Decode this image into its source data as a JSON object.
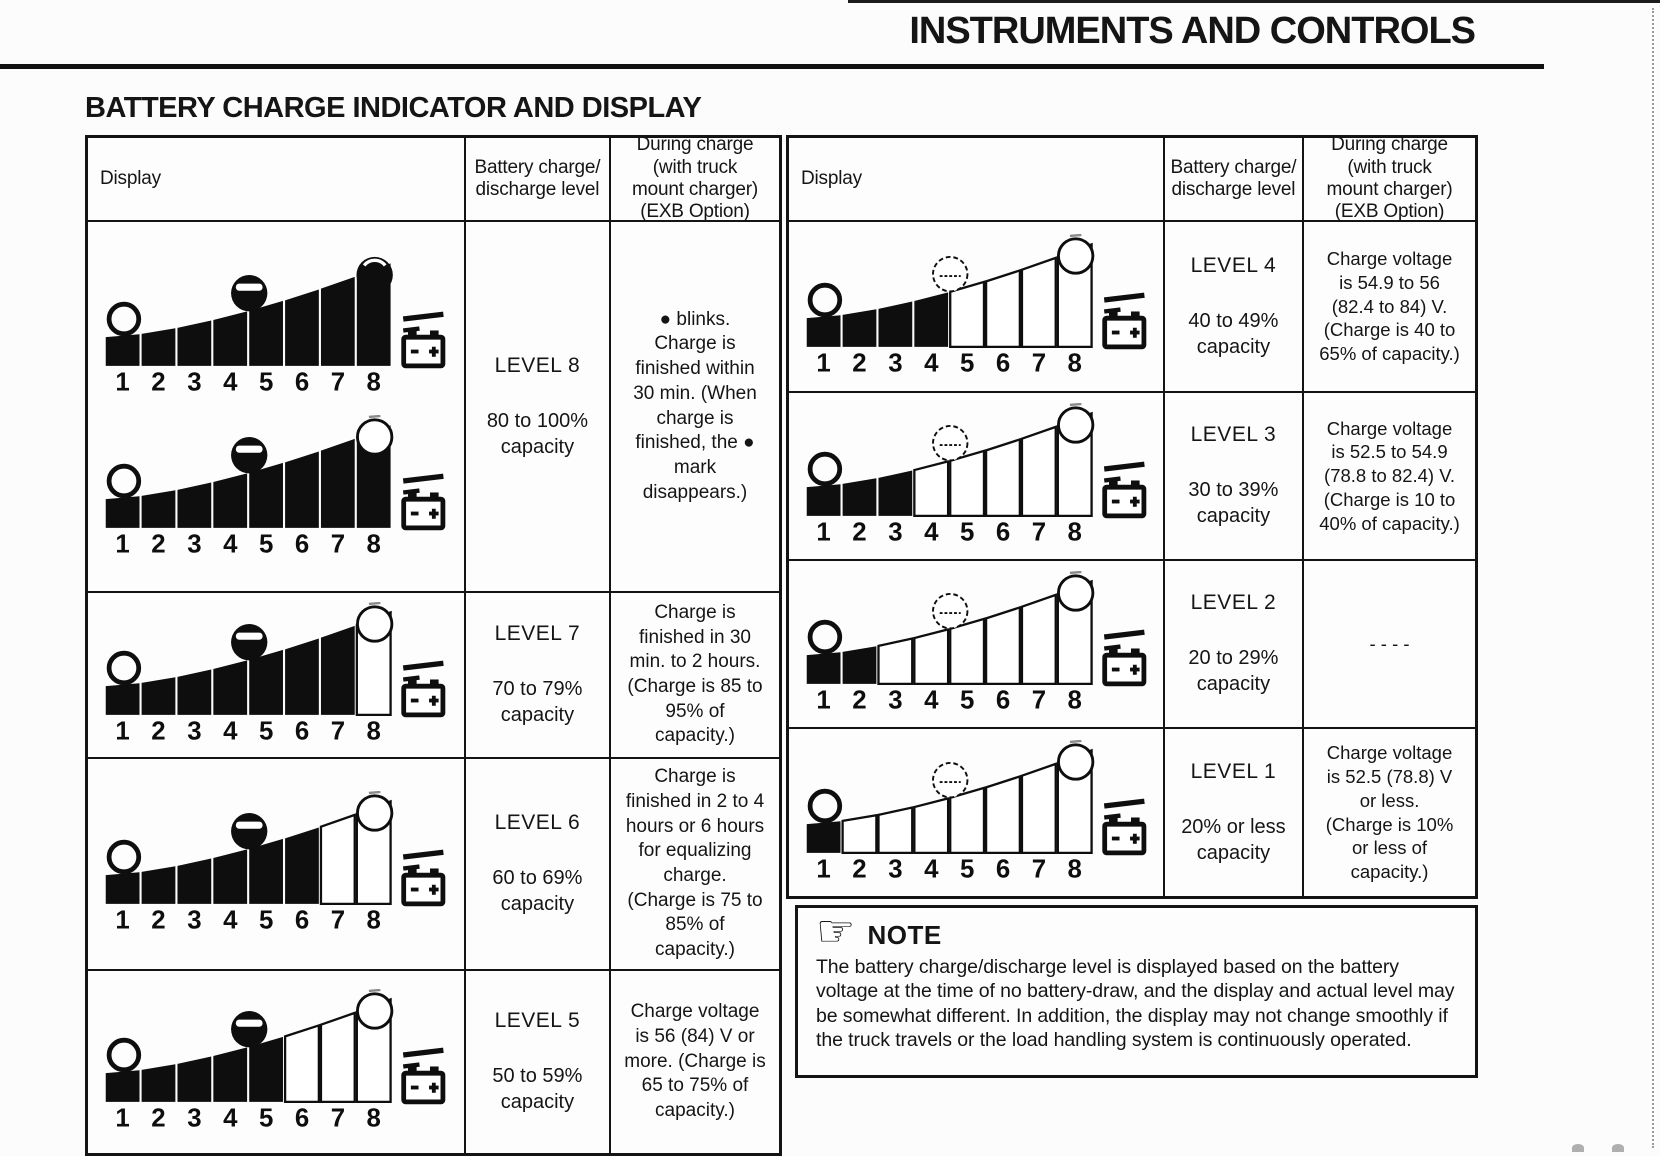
{
  "header": {
    "title": "INSTRUMENTS AND CONTROLS"
  },
  "section": {
    "title": "BATTERY CHARGE INDICATOR AND DISPLAY"
  },
  "columns": {
    "display": "Display",
    "level": "Battery charge/\ndischarge level",
    "during": "During charge\n(with truck\nmount charger)\n(EXB Option)"
  },
  "gauge": {
    "segment_labels": [
      "1",
      "2",
      "3",
      "4",
      "5",
      "6",
      "7",
      "8"
    ],
    "icons": {
      "left_lamp": "empty-circle-lamp",
      "mid_lamp": "half-circle-lamp",
      "top_lamp": "charge-complete-lamp",
      "battery": "battery-icon"
    }
  },
  "left_rows": [
    {
      "level": "LEVEL 8",
      "capacity": "80 to 100%\ncapacity",
      "during": "● blinks.\nCharge is\nfinished within\n30 min. (When\ncharge is\nfinished, the ●\nmark\ndisappears.)",
      "displays": [
        {
          "filled": 8,
          "mid_lamp": "filled",
          "top_lamp": "filled"
        },
        {
          "filled": 8,
          "mid_lamp": "filled",
          "top_lamp": "outline"
        }
      ]
    },
    {
      "level": "LEVEL 7",
      "capacity": "70  to 79%\ncapacity",
      "during": "Charge is\nfinished in 30\nmin. to 2 hours.\n(Charge is 85 to\n95% of\ncapacity.)",
      "displays": [
        {
          "filled": 7,
          "mid_lamp": "filled",
          "top_lamp": "outline"
        }
      ]
    },
    {
      "level": "LEVEL 6",
      "capacity": "60 to 69%\ncapacity",
      "during": "Charge is\nfinished in 2 to 4\nhours or 6 hours\nfor equalizing\ncharge.\n(Charge is 75 to\n85% of\ncapacity.)",
      "displays": [
        {
          "filled": 6,
          "mid_lamp": "filled",
          "top_lamp": "outline"
        }
      ]
    },
    {
      "level": "LEVEL 5",
      "capacity": "50 to 59%\ncapacity",
      "during": "Charge voltage\nis  56 (84) V or\nmore. (Charge is\n65 to 75% of\ncapacity.)",
      "displays": [
        {
          "filled": 5,
          "mid_lamp": "filled",
          "top_lamp": "outline"
        }
      ]
    }
  ],
  "right_rows": [
    {
      "level": "LEVEL 4",
      "capacity": "40 to 49%\ncapacity",
      "during": "Charge voltage\nis 54.9 to 56\n(82.4 to 84) V.\n(Charge is 40 to\n65% of capacity.)",
      "displays": [
        {
          "filled": 4,
          "mid_lamp": "outline",
          "top_lamp": "outline"
        }
      ]
    },
    {
      "level": "LEVEL 3",
      "capacity": "30 to 39%\ncapacity",
      "during": "Charge voltage\nis 52.5 to 54.9\n(78.8 to 82.4) V.\n(Charge is 10 to\n40% of capacity.)",
      "displays": [
        {
          "filled": 3,
          "mid_lamp": "outline",
          "top_lamp": "outline"
        }
      ]
    },
    {
      "level": "LEVEL 2",
      "capacity": "20 to 29%\ncapacity",
      "during": "- - - -",
      "displays": [
        {
          "filled": 2,
          "mid_lamp": "outline",
          "top_lamp": "outline"
        }
      ]
    },
    {
      "level": "LEVEL 1",
      "capacity": "20% or less\ncapacity",
      "during": "Charge voltage\nis 52.5 (78.8) V\nor less.\n(Charge is 10%\nor less of\ncapacity.)",
      "displays": [
        {
          "filled": 1,
          "mid_lamp": "outline",
          "top_lamp": "outline"
        }
      ]
    }
  ],
  "note": {
    "icon_glyph": "☞",
    "title": "NOTE",
    "text": "The battery charge/discharge level is displayed based on the battery voltage at the time of no battery-draw, and the display and actual level may be somewhat different. In addition, the display may not change smoothly if the truck travels or the load handling system is continuously operated."
  },
  "colors": {
    "ink": "#151515",
    "paper": "#fcfcfc"
  }
}
